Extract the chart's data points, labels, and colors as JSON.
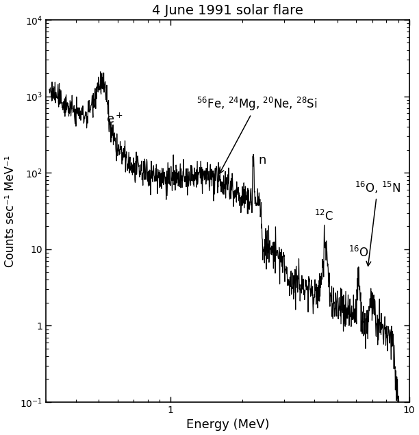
{
  "title": "4 June 1991 solar flare",
  "xlabel": "Energy (MeV)",
  "ylabel": "Counts sec⁻¹ MeV⁻¹",
  "xlim": [
    0.3,
    10.0
  ],
  "ylim": [
    0.1,
    10000.0
  ],
  "background_color": "#ffffff",
  "line_color": "#000000",
  "seed": 42
}
